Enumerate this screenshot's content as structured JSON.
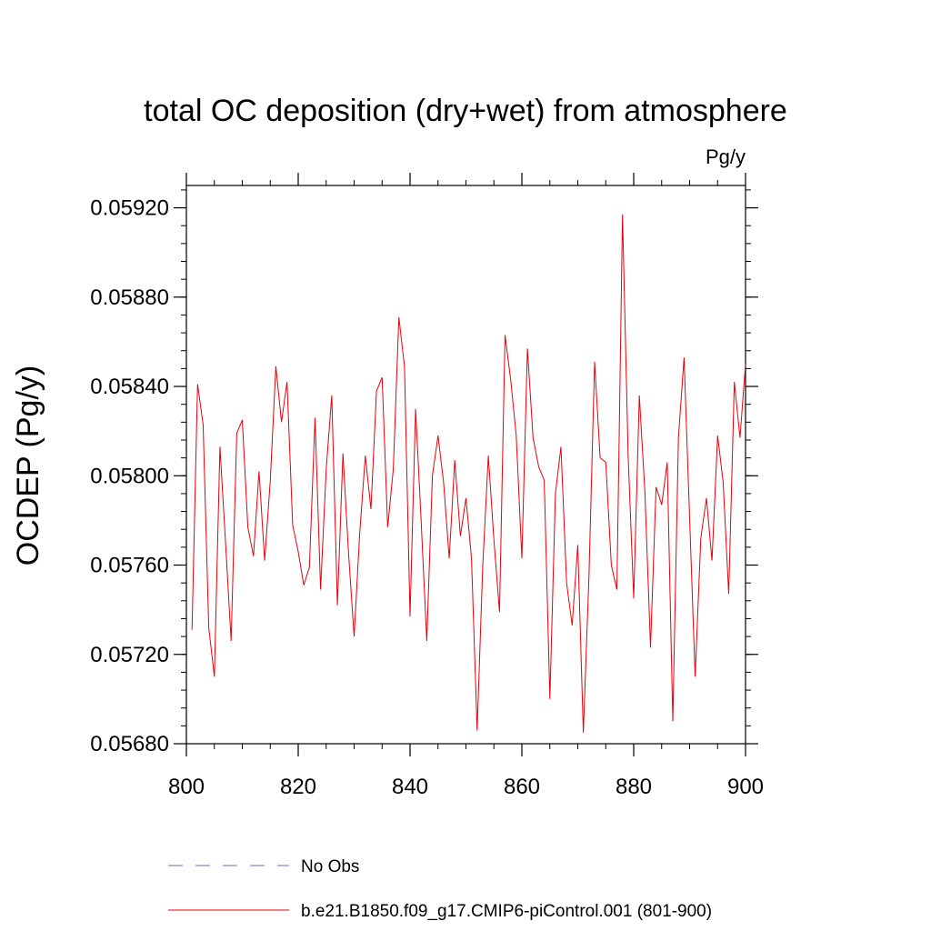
{
  "chart_data": {
    "type": "line",
    "title": "total OC deposition (dry+wet) from atmosphere",
    "units_label": "Pg/y",
    "ylabel": "OCDEP  (Pg/y)",
    "xlabel": "",
    "xlim": [
      800,
      900
    ],
    "ylim": [
      0.0568,
      0.0593
    ],
    "x_ticks": [
      "800",
      "820",
      "840",
      "860",
      "880",
      "900"
    ],
    "y_ticks": [
      "0.05680",
      "0.05720",
      "0.05760",
      "0.05800",
      "0.05840",
      "0.05880",
      "0.05920"
    ],
    "grid": false,
    "legend_position": "bottom",
    "colors": {
      "model": "#e8000b",
      "obs": "#6a6ac8"
    },
    "series": [
      {
        "name": "No Obs",
        "style": "dashed",
        "values": []
      },
      {
        "name": "b.e21.B1850.f09_g17.CMIP6-piControl.001 (801-900)",
        "style": "solid",
        "x": [
          801,
          802,
          803,
          804,
          805,
          806,
          807,
          808,
          809,
          810,
          811,
          812,
          813,
          814,
          815,
          816,
          817,
          818,
          819,
          820,
          821,
          822,
          823,
          824,
          825,
          826,
          827,
          828,
          829,
          830,
          831,
          832,
          833,
          834,
          835,
          836,
          837,
          838,
          839,
          840,
          841,
          842,
          843,
          844,
          845,
          846,
          847,
          848,
          849,
          850,
          851,
          852,
          853,
          854,
          855,
          856,
          857,
          858,
          859,
          860,
          861,
          862,
          863,
          864,
          865,
          866,
          867,
          868,
          869,
          870,
          871,
          872,
          873,
          874,
          875,
          876,
          877,
          878,
          879,
          880,
          881,
          882,
          883,
          884,
          885,
          886,
          887,
          888,
          889,
          890,
          891,
          892,
          893,
          894,
          895,
          896,
          897,
          898,
          899,
          900
        ],
        "values": [
          0.05731,
          0.05841,
          0.05823,
          0.05732,
          0.0571,
          0.05813,
          0.0577,
          0.05726,
          0.05819,
          0.05825,
          0.05777,
          0.05764,
          0.05802,
          0.05762,
          0.05798,
          0.05849,
          0.05824,
          0.05842,
          0.05778,
          0.05766,
          0.05751,
          0.05759,
          0.05826,
          0.05749,
          0.05803,
          0.05836,
          0.05742,
          0.0581,
          0.05765,
          0.05728,
          0.05774,
          0.05809,
          0.05785,
          0.05838,
          0.05844,
          0.05777,
          0.05803,
          0.05871,
          0.05849,
          0.05737,
          0.0583,
          0.05779,
          0.05726,
          0.058,
          0.05818,
          0.05797,
          0.05763,
          0.05807,
          0.05773,
          0.0579,
          0.05763,
          0.05686,
          0.0576,
          0.05809,
          0.05771,
          0.05739,
          0.05863,
          0.05843,
          0.05818,
          0.05763,
          0.05857,
          0.05817,
          0.05804,
          0.05798,
          0.057,
          0.05792,
          0.05813,
          0.05752,
          0.05733,
          0.05769,
          0.05685,
          0.05755,
          0.05851,
          0.05808,
          0.05806,
          0.0576,
          0.05749,
          0.05917,
          0.05809,
          0.05745,
          0.05836,
          0.05793,
          0.05723,
          0.05795,
          0.05787,
          0.05806,
          0.0569,
          0.05817,
          0.05853,
          0.05781,
          0.0571,
          0.05772,
          0.0579,
          0.05762,
          0.05818,
          0.05797,
          0.05747,
          0.05842,
          0.05817,
          0.0585
        ]
      }
    ]
  }
}
